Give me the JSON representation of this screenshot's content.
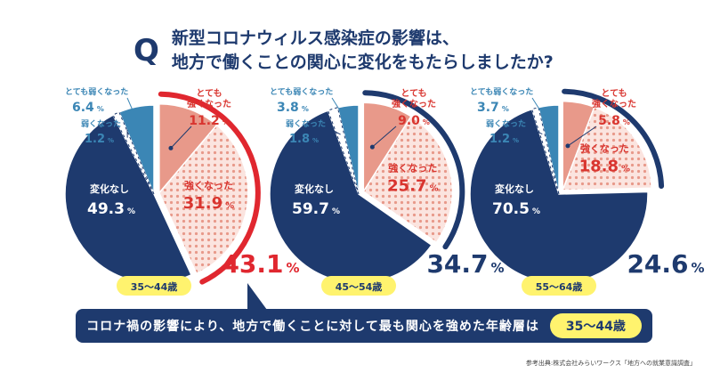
{
  "title": {
    "q": "Q",
    "line1": "新型コロナウィルス感染症の影響は、",
    "line2": "地方で働くことの関心に変化をもたらしましたか?"
  },
  "chart_data": [
    {
      "type": "pie",
      "group": "35〜44歳",
      "slices": [
        {
          "label": "とても強くなった",
          "value": 11.2
        },
        {
          "label": "強くなった",
          "value": 31.9
        },
        {
          "label": "変化なし",
          "value": 49.3
        },
        {
          "label": "弱くなった",
          "value": 1.2
        },
        {
          "label": "とても弱くなった",
          "value": 6.4
        }
      ],
      "total_label": "43.1",
      "total_unit": "%",
      "highlight": true
    },
    {
      "type": "pie",
      "group": "45〜54歳",
      "slices": [
        {
          "label": "とても強くなった",
          "value": 9.0
        },
        {
          "label": "強くなった",
          "value": 25.7
        },
        {
          "label": "変化なし",
          "value": 59.7
        },
        {
          "label": "弱くなった",
          "value": 1.8
        },
        {
          "label": "とても弱くなった",
          "value": 3.8
        }
      ],
      "total_label": "34.7",
      "total_unit": "%",
      "highlight": false
    },
    {
      "type": "pie",
      "group": "55〜64歳",
      "slices": [
        {
          "label": "とても強くなった",
          "value": 5.8
        },
        {
          "label": "強くなった",
          "value": 18.8
        },
        {
          "label": "変化なし",
          "value": 70.5
        },
        {
          "label": "弱くなった",
          "value": 1.2
        },
        {
          "label": "とても弱くなった",
          "value": 3.7
        }
      ],
      "total_label": "24.6",
      "total_unit": "%",
      "highlight": false
    }
  ],
  "labels": {
    "very_strong_1": "とても",
    "very_strong_2": "強くなった",
    "strong": "強くなった",
    "no_change": "変化なし",
    "weak": "弱くなった",
    "very_weak": "とても弱くなった",
    "pct": "%"
  },
  "colors": {
    "navy": "#1e3a6e",
    "salmon": "#e8998a",
    "dots_bg": "#fbe4df",
    "dot": "#e8998a",
    "blue": "#3b86b5",
    "red": "#e0272f",
    "yellow": "#fff36e",
    "label_red": "#d9352f",
    "label_blue": "#3b86b5"
  },
  "bottom": {
    "text": "コロナ禍の影響により、地方で働くことに対して最も関心を強めた年齢層は",
    "answer": "35〜44歳"
  },
  "source": "参考出典:株式会社みらいワークス「地方への就業意識調査」"
}
